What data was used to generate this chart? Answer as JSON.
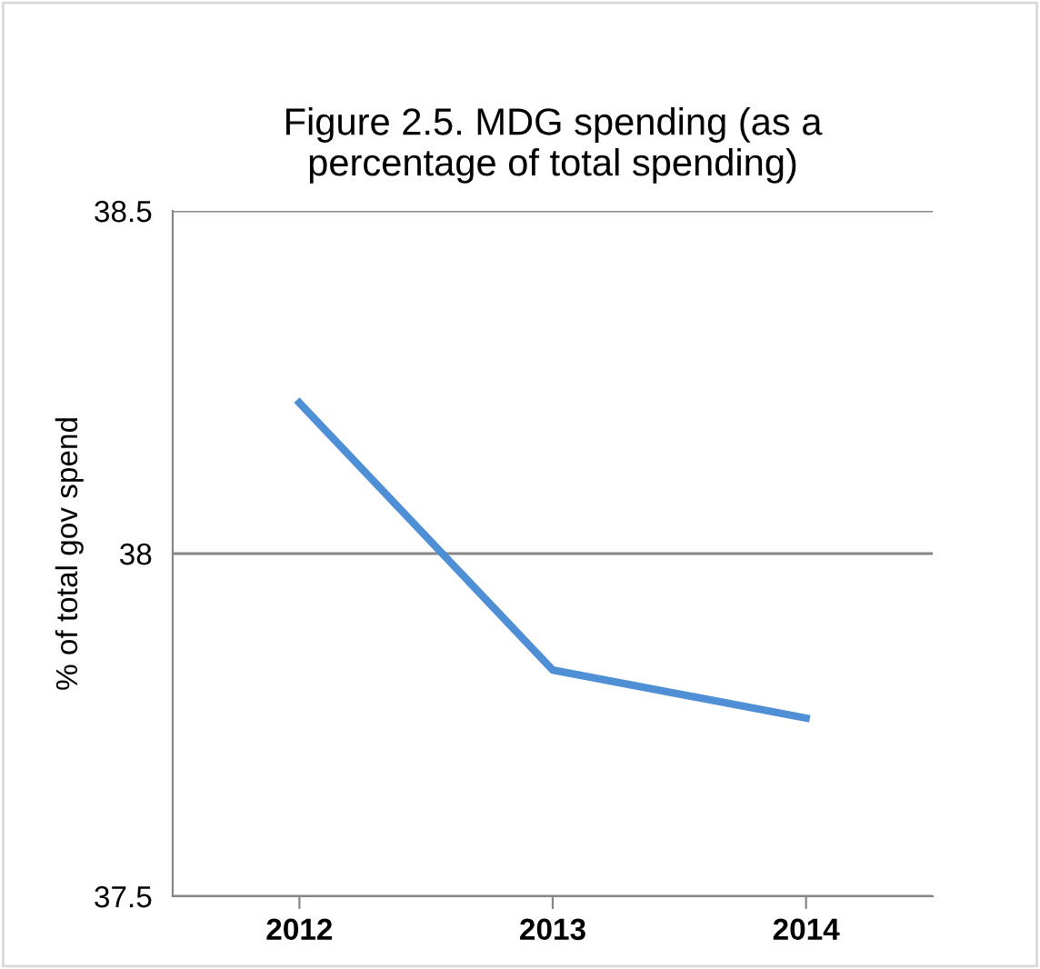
{
  "chart_data": {
    "type": "line",
    "title": "Figure 2.5. MDG spending (as a\npercentage of total spending)",
    "ylabel": "% of total gov spend",
    "categories": [
      "2012",
      "2013",
      "2014"
    ],
    "series": [
      {
        "color": "#4f8fd6",
        "values": [
          38.22,
          37.83,
          37.76
        ]
      }
    ],
    "ylim": [
      37.5,
      38.5
    ],
    "yticks": [
      {
        "value": 37.5,
        "label": "37.5"
      },
      {
        "value": 38,
        "label": "38"
      },
      {
        "value": 38.5,
        "label": "38.5"
      }
    ],
    "grid": "y",
    "marker": "none",
    "line_style": "solid",
    "legend": false
  }
}
